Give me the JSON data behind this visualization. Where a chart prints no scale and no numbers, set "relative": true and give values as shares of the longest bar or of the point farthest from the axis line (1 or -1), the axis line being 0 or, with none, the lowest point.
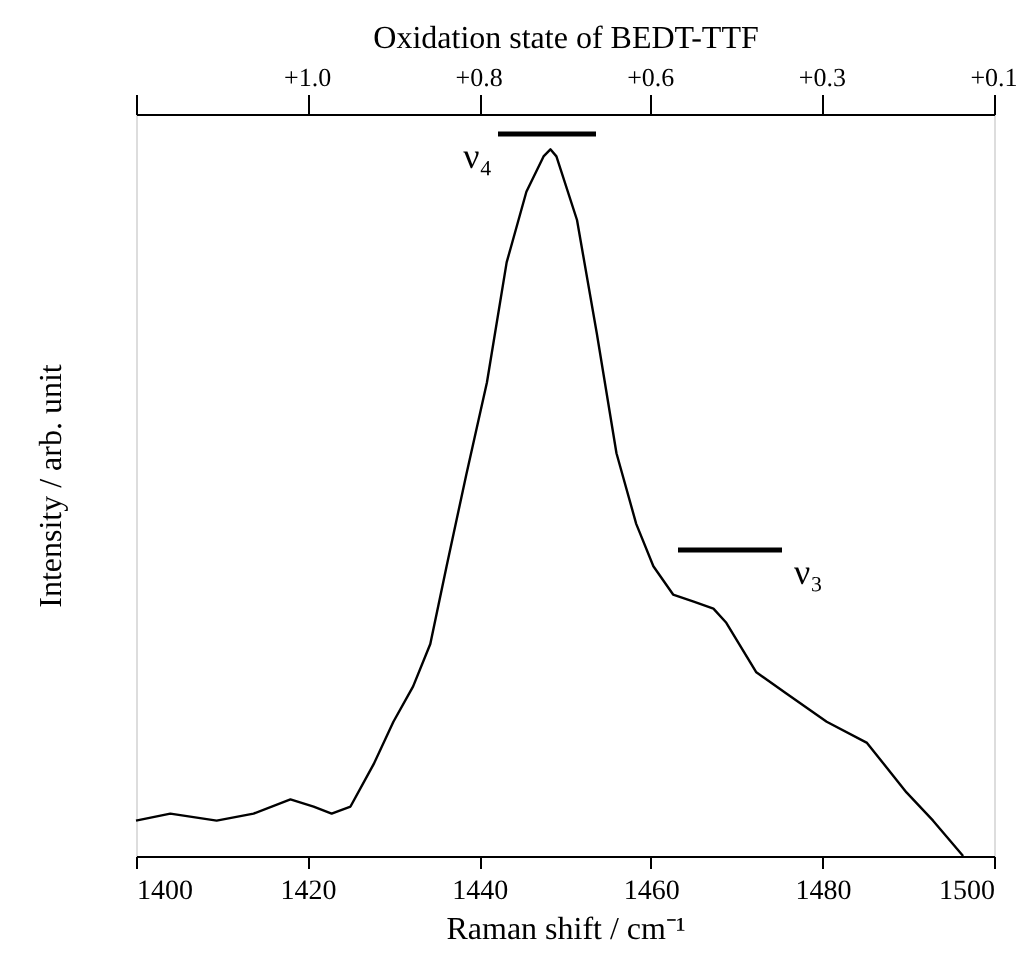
{
  "chart_data": {
    "type": "line",
    "relative": true,
    "xlabel": "Raman shift / cm⁻¹",
    "ylabel": "Intensity / arb. unit",
    "x2label": "Oxidation state of BEDT-TTF",
    "xlim": [
      1400,
      1500
    ],
    "xticks": [
      1400,
      1420,
      1440,
      1460,
      1480,
      1500
    ],
    "grid": false,
    "marker": "none",
    "line_style": "solid",
    "annotations": [
      "ν₄",
      "ν₃",
      "+1.0",
      "+0.8",
      "+0.6",
      "+0.3",
      "+0.1"
    ],
    "series": [
      {
        "color": "#000000",
        "x": [
          1400,
          1404,
          1409.4,
          1413.7,
          1418,
          1420.7,
          1422.8,
          1425,
          1427.7,
          1430,
          1432.3,
          1434.3,
          1436.2,
          1438.5,
          1440.9,
          1443.2,
          1445.5,
          1447.5,
          1448.3,
          1449,
          1451.4,
          1453.7,
          1456,
          1458.3,
          1460.3,
          1462.6,
          1465,
          1467.3,
          1468.8,
          1472.3,
          1475.8,
          1480.5,
          1485.2,
          1489.8,
          1492.9,
          1496.4
        ],
        "values": [
          0.05,
          0.06,
          0.05,
          0.06,
          0.08,
          0.07,
          0.06,
          0.07,
          0.13,
          0.19,
          0.24,
          0.3,
          0.41,
          0.54,
          0.67,
          0.84,
          0.94,
          0.99,
          1.0,
          0.99,
          0.9,
          0.74,
          0.57,
          0.47,
          0.41,
          0.37,
          0.36,
          0.35,
          0.33,
          0.26,
          0.23,
          0.19,
          0.16,
          0.09,
          0.05,
          0.0
        ]
      }
    ]
  }
}
